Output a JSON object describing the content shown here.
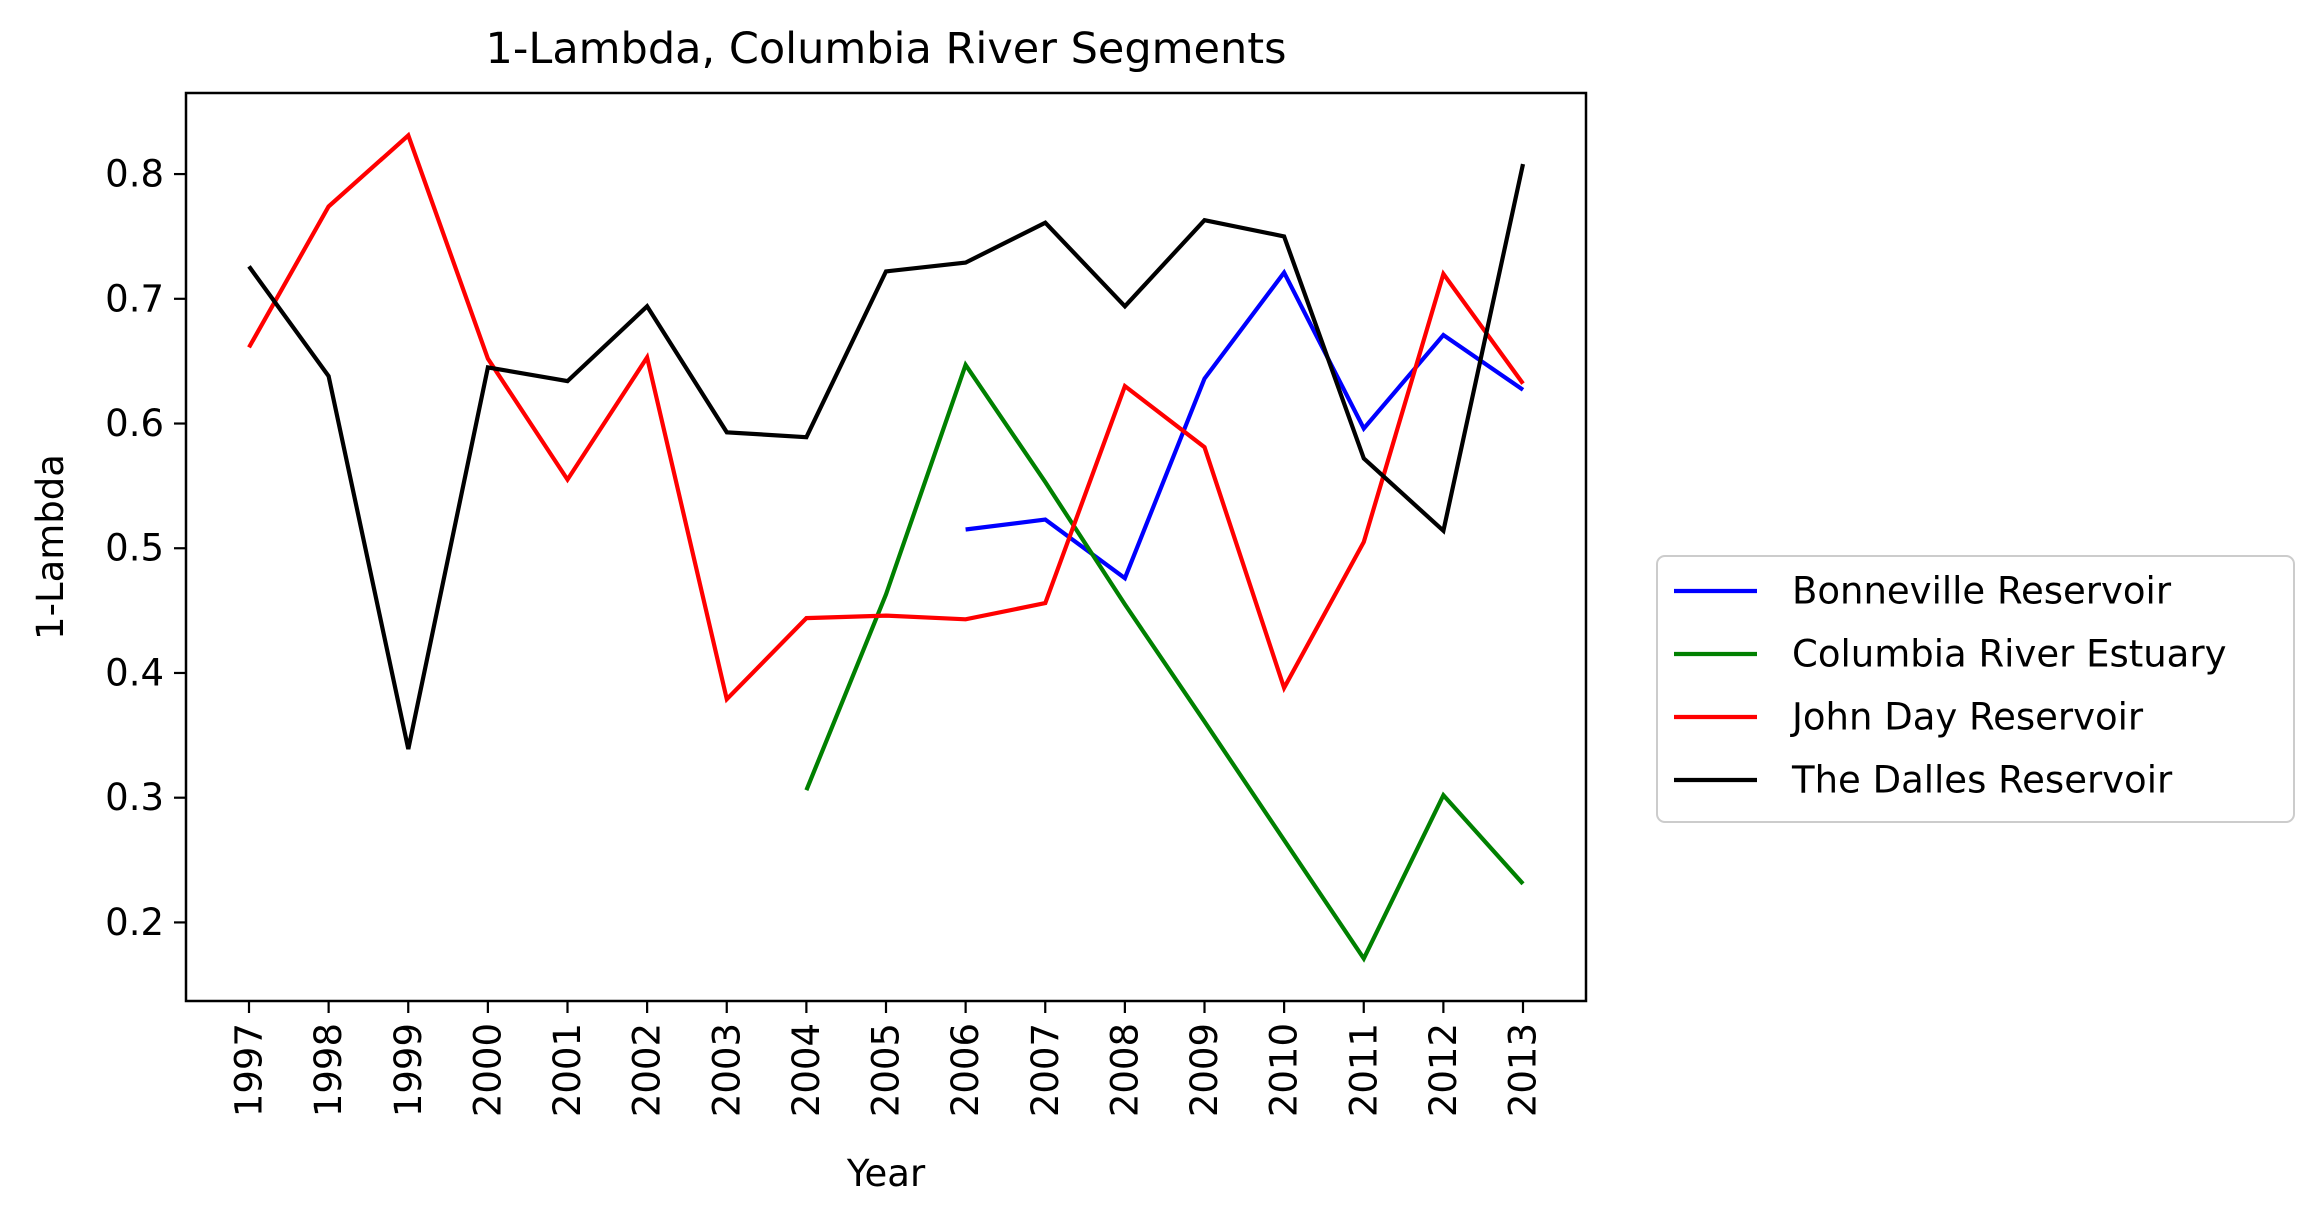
{
  "chart_data": {
    "type": "line",
    "title": "1-Lambda, Columbia River Segments",
    "xlabel": "Year",
    "ylabel": "1-Lambda",
    "x": [
      "1997",
      "1998",
      "1999",
      "2000",
      "2001",
      "2002",
      "2003",
      "2004",
      "2005",
      "2006",
      "2007",
      "2008",
      "2009",
      "2010",
      "2011",
      "2012",
      "2013"
    ],
    "ylim": [
      0.137,
      0.865
    ],
    "yticks": [
      "0.2",
      "0.3",
      "0.4",
      "0.5",
      "0.6",
      "0.7",
      "0.8"
    ],
    "ytick_values": [
      0.2,
      0.3,
      0.4,
      0.5,
      0.6,
      0.7,
      0.8
    ],
    "grid": false,
    "legend_position": "outside-right",
    "series": [
      {
        "name": "Bonneville Reservoir",
        "color": "#0000ff",
        "values": [
          null,
          null,
          null,
          null,
          null,
          null,
          null,
          null,
          null,
          0.515,
          0.523,
          0.476,
          0.636,
          0.721,
          0.596,
          0.671,
          0.627
        ]
      },
      {
        "name": "Columbia River Estuary",
        "color": "#008000",
        "values": [
          null,
          null,
          null,
          null,
          null,
          null,
          null,
          0.306,
          0.463,
          0.647,
          0.553,
          0.455,
          0.361,
          0.266,
          0.171,
          0.302,
          0.231
        ]
      },
      {
        "name": "John Day Reservoir",
        "color": "#ff0000",
        "values": [
          0.661,
          0.774,
          0.831,
          0.652,
          0.555,
          0.653,
          0.379,
          0.444,
          0.446,
          0.443,
          0.456,
          0.63,
          0.581,
          0.388,
          0.505,
          0.72,
          0.632
        ]
      },
      {
        "name": "The Dalles Reservoir",
        "color": "#000000",
        "values": [
          0.726,
          0.638,
          0.339,
          0.645,
          0.634,
          0.694,
          0.593,
          0.589,
          0.722,
          0.729,
          0.761,
          0.694,
          0.763,
          0.75,
          0.572,
          0.514,
          0.808
        ]
      }
    ]
  }
}
